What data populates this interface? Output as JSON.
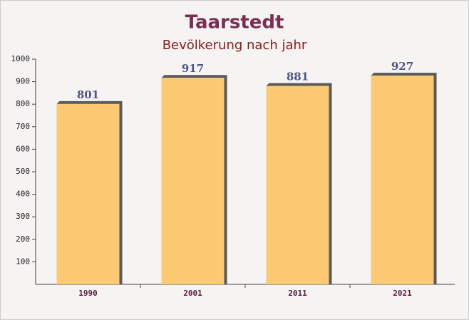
{
  "chart_data": {
    "type": "bar",
    "title": "Taarstedt",
    "subtitle": "Bevölkerung nach jahr",
    "categories": [
      "1990",
      "2001",
      "2011",
      "2021"
    ],
    "values": [
      801,
      917,
      881,
      927
    ],
    "color": "#fdc567",
    "ylim": [
      0,
      1000
    ],
    "yticks": [
      100,
      200,
      300,
      400,
      500,
      600,
      700,
      800,
      900,
      1000
    ]
  }
}
